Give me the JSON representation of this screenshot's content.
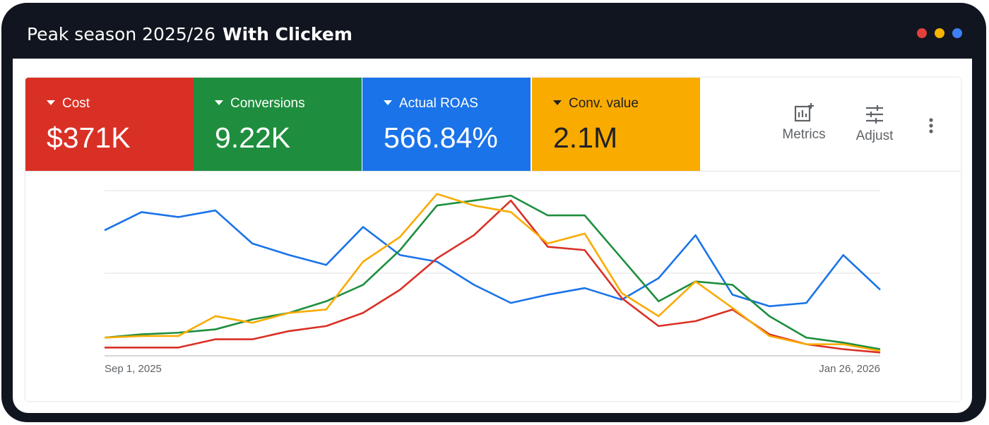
{
  "window": {
    "title_part1": "Peak season 2025/26",
    "title_part2": "With Clickem",
    "dots": [
      "#e0413a",
      "#f4b400",
      "#3d7ff5"
    ]
  },
  "metrics": [
    {
      "label": "Cost",
      "value": "$371K",
      "color": "#d93025"
    },
    {
      "label": "Conversions",
      "value": "9.22K",
      "color": "#1e8e3e"
    },
    {
      "label": "Actual ROAS",
      "value": "566.84%",
      "color": "#1a73e8"
    },
    {
      "label": "Conv. value",
      "value": "2.1M",
      "color": "#f9ab00"
    }
  ],
  "toolbar": {
    "metrics_label": "Metrics",
    "adjust_label": "Adjust",
    "metrics_icon": "metrics-chart-icon",
    "adjust_icon": "sliders-icon",
    "more_icon": "more-vert-icon"
  },
  "chart_data": {
    "type": "line",
    "x_start_label": "Sep 1, 2025",
    "x_end_label": "Jan 26, 2026",
    "x": [
      "Sep 1, 2025",
      "Sep 8, 2025",
      "Sep 15, 2025",
      "Sep 22, 2025",
      "Sep 29, 2025",
      "Oct 6, 2025",
      "Oct 13, 2025",
      "Oct 20, 2025",
      "Oct 27, 2025",
      "Nov 3, 2025",
      "Nov 10, 2025",
      "Nov 17, 2025",
      "Nov 24, 2025",
      "Dec 1, 2025",
      "Dec 8, 2025",
      "Dec 15, 2025",
      "Dec 22, 2025",
      "Dec 29, 2025",
      "Jan 5, 2026",
      "Jan 12, 2026",
      "Jan 19, 2026",
      "Jan 26, 2026"
    ],
    "ylim": [
      0,
      100
    ],
    "grid": true,
    "legend": "none",
    "series": [
      {
        "color": "#1a73e8",
        "values": [
          76,
          87,
          84,
          88,
          68,
          61,
          55,
          78,
          61,
          57,
          43,
          32,
          37,
          41,
          34,
          47,
          73,
          37,
          30,
          32,
          61,
          40
        ]
      },
      {
        "color": "#d93025",
        "values": [
          5,
          5,
          5,
          10,
          10,
          15,
          18,
          26,
          40,
          59,
          73,
          94,
          66,
          64,
          35,
          18,
          21,
          28,
          13,
          7,
          4,
          2
        ]
      },
      {
        "color": "#1e8e3e",
        "values": [
          11,
          13,
          14,
          16,
          22,
          26,
          33,
          43,
          64,
          91,
          94,
          97,
          85,
          85,
          59,
          33,
          45,
          43,
          24,
          11,
          8,
          4
        ]
      },
      {
        "color": "#f9ab00",
        "values": [
          11,
          12,
          12,
          24,
          20,
          26,
          28,
          57,
          72,
          98,
          91,
          87,
          68,
          74,
          38,
          24,
          45,
          29,
          12,
          7,
          7,
          3
        ]
      }
    ]
  }
}
